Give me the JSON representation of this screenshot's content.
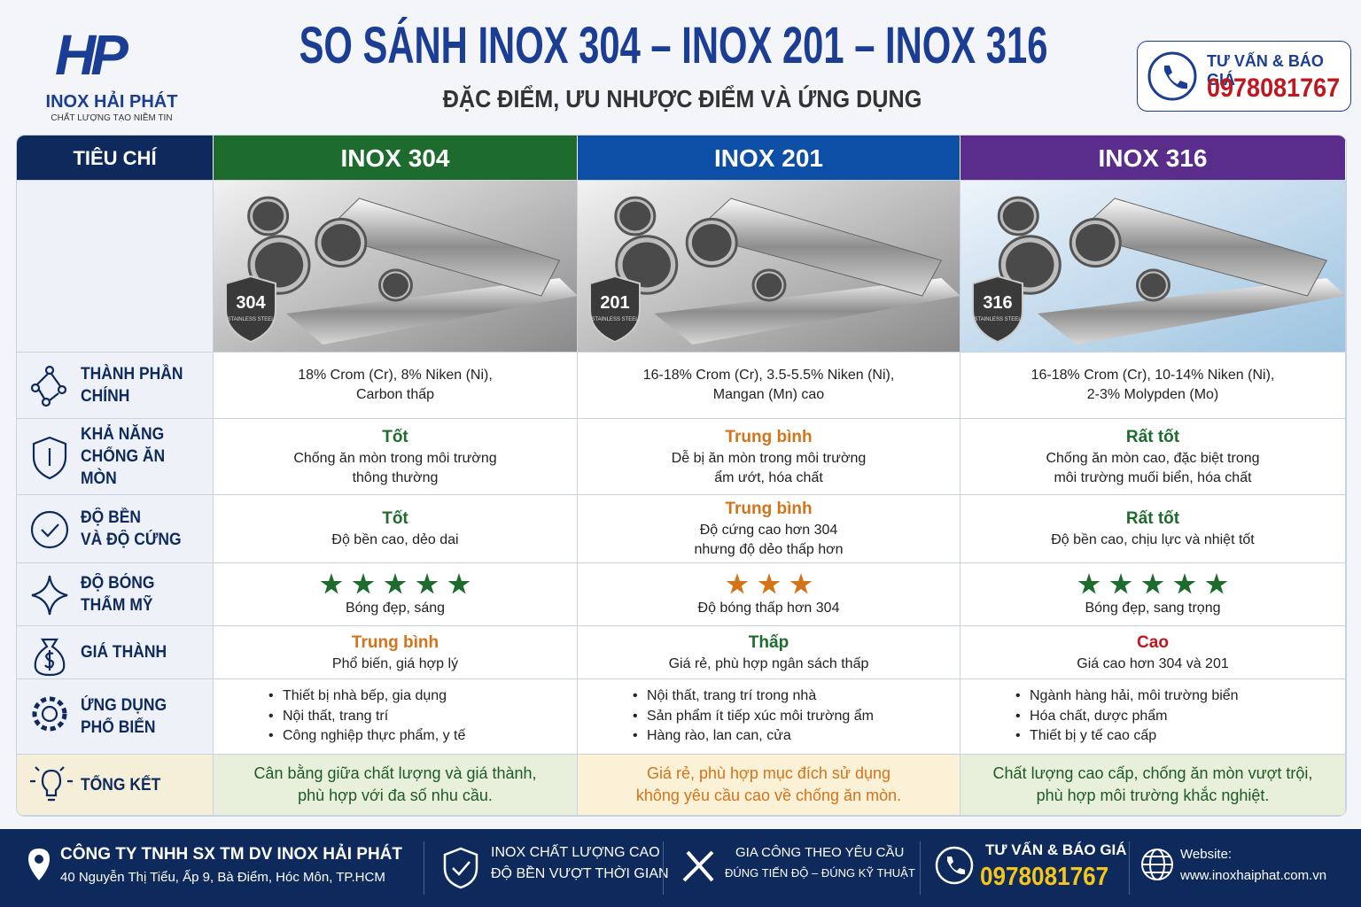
{
  "header": {
    "logo_mark": "HP",
    "logo_text": "INOX HẢI PHÁT",
    "logo_tagline": "CHẤT LƯỢNG TẠO NIỀM TIN",
    "title": "SO SÁNH INOX 304 – INOX 201 – INOX 316",
    "subtitle": "ĐẶC ĐIỂM, ƯU NHƯỢC ĐIỂM VÀ ỨNG DỤNG",
    "contact_label": "TƯ VẤN & BÁO GIÁ",
    "contact_phone": "0978081767"
  },
  "table": {
    "header": [
      "TIÊU CHÍ",
      "INOX 304",
      "INOX 201",
      "INOX 316"
    ],
    "header_colors": [
      "#0e2a5c",
      "#1e6b2e",
      "#0d4ea6",
      "#5a2d8c"
    ],
    "badges": [
      {
        "grade": "304",
        "text": "STAINLESS STEEL"
      },
      {
        "grade": "201",
        "text": "STAINLESS STEEL"
      },
      {
        "grade": "316",
        "text": "STAINLESS STEEL"
      }
    ],
    "rows": [
      {
        "criterion": [
          "THÀNH PHẦN",
          "CHÍNH"
        ],
        "cells": [
          {
            "lines": [
              "18% Crom (Cr), 8% Niken (Ni),",
              "Carbon thấp"
            ]
          },
          {
            "lines": [
              "16-18% Crom (Cr), 3.5-5.5% Niken (Ni),",
              "Mangan (Mn) cao"
            ]
          },
          {
            "lines": [
              "16-18% Crom (Cr), 10-14% Niken (Ni),",
              "2-3% Molypden (Mo)"
            ]
          }
        ]
      },
      {
        "criterion": [
          "KHẢ NĂNG",
          "CHỐNG ĂN MÒN"
        ],
        "cells": [
          {
            "rating": "Tốt",
            "rating_color": "#1e6b2e",
            "lines": [
              "Chống ăn mòn trong môi trường",
              "thông thường"
            ]
          },
          {
            "rating": "Trung bình",
            "rating_color": "#d4731a",
            "lines": [
              "Dễ bị ăn mòn trong môi trường",
              "ẩm ướt, hóa chất"
            ]
          },
          {
            "rating": "Rất tốt",
            "rating_color": "#1e6b2e",
            "lines": [
              "Chống ăn mòn cao, đặc biệt trong",
              "môi trường muối biển, hóa chất"
            ]
          }
        ]
      },
      {
        "criterion": [
          "ĐỘ BỀN",
          "VÀ ĐỘ CỨNG"
        ],
        "cells": [
          {
            "rating": "Tốt",
            "rating_color": "#1e6b2e",
            "lines": [
              "Độ bền cao, dẻo dai"
            ]
          },
          {
            "rating": "Trung bình",
            "rating_color": "#d4731a",
            "lines": [
              "Độ cứng cao hơn 304",
              "nhưng độ dẻo thấp hơn"
            ]
          },
          {
            "rating": "Rất tốt",
            "rating_color": "#1e6b2e",
            "lines": [
              "Độ bền cao, chịu lực và nhiệt tốt"
            ]
          }
        ]
      },
      {
        "criterion": [
          "ĐỘ BÓNG",
          "THẨM MỸ"
        ],
        "cells": [
          {
            "stars": 5,
            "star_color": "#1e6b2e",
            "lines": [
              "Bóng đẹp, sáng"
            ]
          },
          {
            "stars": 3,
            "star_color": "#d4731a",
            "lines": [
              "Độ bóng thấp hơn 304"
            ]
          },
          {
            "stars": 5,
            "star_color": "#1e6b2e",
            "lines": [
              "Bóng đẹp, sang trọng"
            ]
          }
        ]
      },
      {
        "criterion": [
          "GIÁ THÀNH"
        ],
        "cells": [
          {
            "rating": "Trung bình",
            "rating_color": "#d4731a",
            "lines": [
              "Phổ biến, giá hợp lý"
            ]
          },
          {
            "rating": "Thấp",
            "rating_color": "#1e6b2e",
            "lines": [
              "Giá rẻ, phù hợp ngân sách thấp"
            ]
          },
          {
            "rating": "Cao",
            "rating_color": "#c0161e",
            "lines": [
              "Giá cao hơn 304 và 201"
            ]
          }
        ]
      },
      {
        "criterion": [
          "ỨNG DỤNG",
          "PHỔ BIẾN"
        ],
        "cells": [
          {
            "bullets": [
              "Thiết bị nhà bếp, gia dụng",
              "Nội thất, trang trí",
              "Công nghiệp thực phẩm, y tế"
            ]
          },
          {
            "bullets": [
              "Nội thất, trang trí trong nhà",
              "Sản phẩm ít tiếp xúc môi trường ẩm",
              "Hàng rào, lan can, cửa"
            ]
          },
          {
            "bullets": [
              "Ngành hàng hải, môi trường biển",
              "Hóa chất, dược phẩm",
              "Thiết bị y tế cao cấp"
            ]
          }
        ]
      },
      {
        "criterion": [
          "TỔNG KẾT"
        ],
        "cells": [
          {
            "summary": [
              "Cân bằng giữa chất lượng và giá thành,",
              "phù hợp với đa số nhu cầu."
            ],
            "summary_color": "#1e5a28",
            "background": "#e8efda"
          },
          {
            "summary": [
              "Giá rẻ, phù hợp mục đích sử dụng",
              "không yêu cầu cao về chống ăn mòn."
            ],
            "summary_color": "#d4731a",
            "background": "#fbf1d6"
          },
          {
            "summary": [
              "Chất lượng cao cấp, chống ăn mòn vượt trội,",
              "phù hợp môi trường khắc nghiệt."
            ],
            "summary_color": "#1e5a28",
            "background": "#e8efda"
          }
        ]
      }
    ]
  },
  "footer": {
    "company": "CÔNG TY TNHH SX TM DV INOX HẢI PHÁT",
    "address": "40 Nguyễn Thị Tiểu, Ấp 9, Bà Điểm, Hóc Môn, TP.HCM",
    "quality_1": "INOX CHẤT LƯỢNG CAO",
    "quality_2": "ĐỘ BỀN VƯỢT THỜI GIAN",
    "service_1": "GIA CÔNG THEO YÊU CẦU",
    "service_2": "ĐÚNG TIẾN ĐỘ – ĐÚNG KỸ THUẬT",
    "contact_label": "TƯ VẤN & BÁO GIÁ",
    "contact_phone": "0978081767",
    "website_label": "Website:",
    "website": "www.inoxhaiphat.com.vn"
  }
}
